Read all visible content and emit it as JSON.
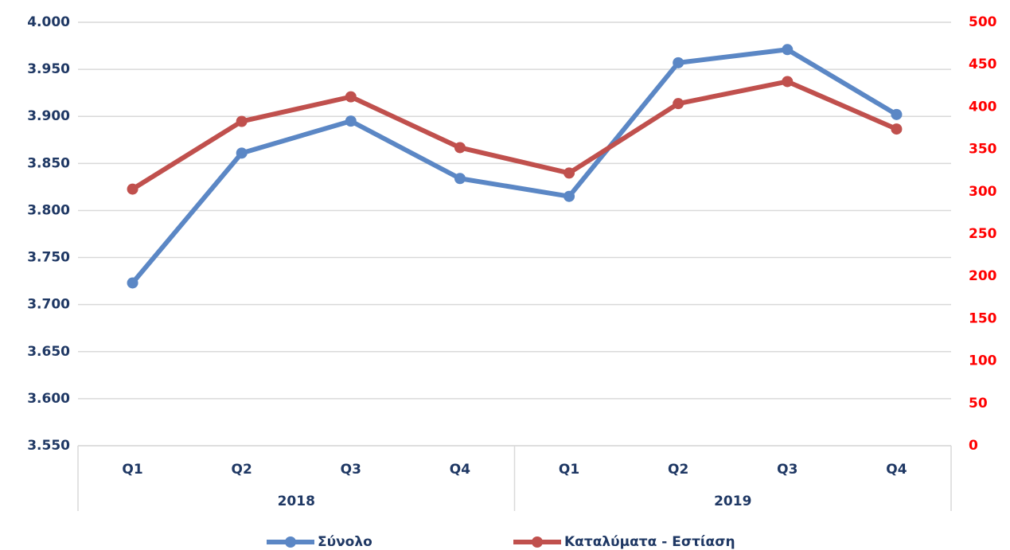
{
  "chart_data": {
    "type": "line",
    "categories": [
      "Q1",
      "Q2",
      "Q3",
      "Q4",
      "Q1",
      "Q2",
      "Q3",
      "Q4"
    ],
    "groups": [
      "2018",
      "2019"
    ],
    "series": [
      {
        "name": "Σύνολο",
        "color": "#5b87c5",
        "values": [
          3723,
          3861,
          3895,
          3834,
          3815,
          3957,
          3971,
          3902
        ]
      },
      {
        "name": "Καταλύματα - Εστίαση",
        "color": "#c0504d",
        "axis": "y2",
        "values": [
          303,
          383,
          412,
          352,
          322,
          404,
          430,
          374
        ]
      }
    ],
    "ylim": [
      3550,
      4000
    ],
    "yticks": [
      {
        "value": 3550,
        "label": "3.550"
      },
      {
        "value": 3600,
        "label": "3.600"
      },
      {
        "value": 3650,
        "label": "3.650"
      },
      {
        "value": 3700,
        "label": "3.700"
      },
      {
        "value": 3750,
        "label": "3.750"
      },
      {
        "value": 3800,
        "label": "3.800"
      },
      {
        "value": 3850,
        "label": "3.850"
      },
      {
        "value": 3900,
        "label": "3.900"
      },
      {
        "value": 3950,
        "label": "3.950"
      },
      {
        "value": 4000,
        "label": "4.000"
      }
    ],
    "y2lim": [
      0,
      500
    ],
    "y2ticks": [
      0,
      50,
      100,
      150,
      200,
      250,
      300,
      350,
      400,
      450,
      500
    ],
    "y2color": "#ff0000",
    "grid": true,
    "legend": "bottom"
  }
}
